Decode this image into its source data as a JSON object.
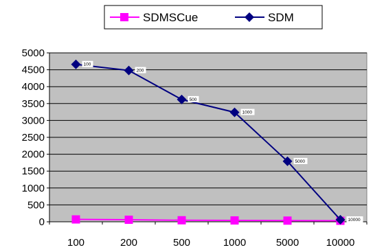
{
  "chart_data": {
    "type": "line",
    "categories": [
      "100",
      "200",
      "500",
      "1000",
      "5000",
      "10000"
    ],
    "series": [
      {
        "name": "SDMSCue",
        "values": [
          70,
          60,
          45,
          40,
          35,
          30
        ],
        "color": "#ff00ff",
        "marker": "square"
      },
      {
        "name": "SDM",
        "values": [
          4660,
          4480,
          3620,
          3240,
          1790,
          60
        ],
        "color": "#000080",
        "marker": "diamond",
        "data_labels": [
          "100",
          "200",
          "500",
          "1000",
          "5000",
          "10000"
        ]
      }
    ],
    "ylim": [
      0,
      5000
    ],
    "yticks": [
      0,
      500,
      1000,
      1500,
      2000,
      2500,
      3000,
      3500,
      4000,
      4500,
      5000
    ],
    "grid": true,
    "plot_background": "#c0c0c0",
    "legend_position": "top",
    "title": "",
    "xlabel": "",
    "ylabel": ""
  }
}
